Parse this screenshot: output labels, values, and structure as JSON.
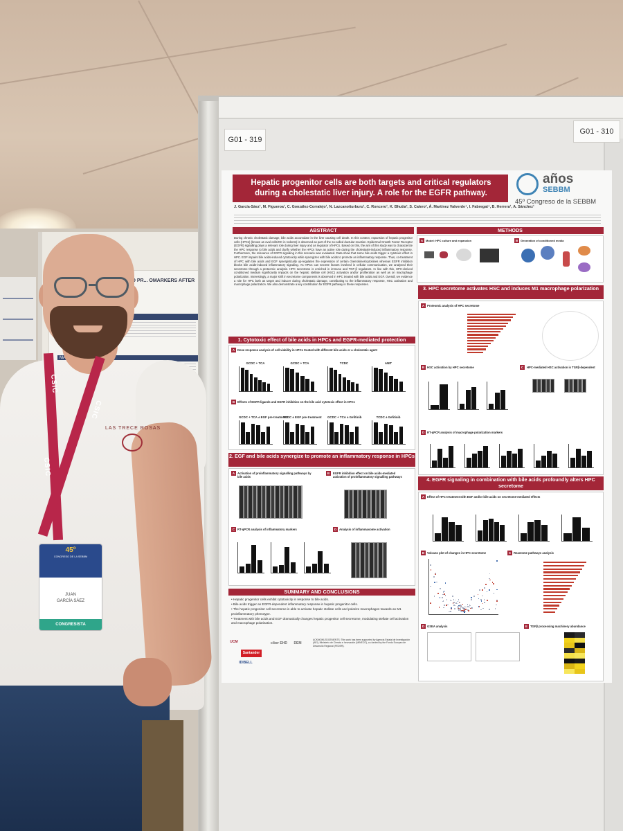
{
  "tags": {
    "left": "G01 - 319",
    "right": "G01 - 310"
  },
  "poster": {
    "title": "Hepatic progenitor cells are both targets and critical regulators during a cholestatic liver injury. A role for the EGFR pathway.",
    "logo_main": "años",
    "logo_sub": "SEBBM",
    "congress": "45º Congreso de la SEBBM",
    "authors": "J. García-Sáez¹, M. Figueroa¹, C. González-Corralejo¹, N. Lazcanoiturburu¹, C. Roncero¹, K. Bhutia³, S. Calero², Á. Martínez Valverde⁴, I. Fabregat⁴, B. Herrera¹, A. Sánchez¹",
    "abstract_h": "ABSTRACT",
    "abstract": "During chronic cholestatic damage, bile acids accumulate in the liver causing cell death. In this context, expansion of hepatic progenitor cells (HPCs) (known as oval cells/OC in rodents) is observed as part of the so-called ductular reaction. Epidermal Growth Factor Receptor (EGFR) signalling plays a relevant role during liver injury and as regulator of HPCs. Based on this, the aim of this study was to characterize the HPC response to bile acids and clarify whether the HPCs have an active role during the cholestasis-induced inflammatory response. Furthermore, the relevance of EGFR signaling in this scenario was evaluated. Data show that some bile acids trigger a cytotoxic effect in HPC. EGF impairs bile acids-induced cytotoxicity while synergizes with bile acids to promote an inflammatory response. Thus, co-treatment of HPC with bile acids and EGF synergistically up-regulates the expression of certain chemokines/cytokines whereas EGFR inhibition blocks bile acids-induced inflammatory signaling. As HPCs can secrete factors involved in cellular communication, we analyzed their secretome through a proteomic analysis. HPC secretome is enriched in immune and TGF-β regulators. In line with this, HPC-derived conditioned medium significantly impacts on the hepatic stellate cell (HSC) activation and/or proliferation as well as on macrophage polarization. Interestingly, a major shift in secretome components is observed in HPC treated with bile acids and EGF. Overall, we evidence a role for HPC both as target and inducer during cholestatic damage, contributing to the inflammatory response, HSC activation and macrophage polarization. We also demonstrate a key contribution for EGFR pathway in these responses.",
    "methods_h": "METHODS",
    "methods_a": "Model: HPC culture and expansion",
    "methods_b": "Generation of conditioned media",
    "sec1": "1. Cytotoxic effect of bile acids in HPCs and EGFR-mediated protection",
    "sec1_a": "Dose response analysis of cell viability in HPCs treated with different bile acids or a cholestatic agent",
    "sec1_b": "Effects of EGFR ligands and EGFR inhibition on the bile acid cytotoxic effect in HPCs",
    "sec1_charts": [
      "GCDC + TCA",
      "GCDC + TCA",
      "TCDC",
      "ANIT"
    ],
    "sec1_charts_b": [
      "GCDC + TCA ± EGF pre-treatment",
      "TCDC ± EGF pre-treatment",
      "GCDC + TCA ± Gefitinib",
      "TCDC ± Gefitinib"
    ],
    "sec2": "2. EGF and bile acids synergize to promote an inflammatory response in HPCs",
    "sec2_a": "Activation of proinflammatory signalling pathways by bile acids",
    "sec2_b": "EGFR inhibition effect on bile acids-mediated activation of proinflammatory signalling pathways",
    "sec2_c": "RT-qPCR analysis of inflammatory markers",
    "sec2_d": "Analysis of inflammasome activation",
    "sec3": "3. HPC secretome activates HSC and induces M1 macrophage polarization",
    "sec3_a": "Proteomic analysis of HPC secretome",
    "sec3_b": "HSC activation by HPC secretome",
    "sec3_c": "HPC-mediated HSC activation is TGFβ-dependent",
    "sec3_d": "RT-qPCR analysis of macrophage polarization markers",
    "sec4": "4. EGFR signaling in combination with bile acids profoundly alters HPC secretome",
    "sec4_a": "Effect of HPC treatment with EGF and/or bile acids on secretome-mediated effects",
    "sec4_b": "Volcano plot of changes in HPC secretome",
    "sec4_c": "Reactome pathways analysis",
    "sec4_d": "GSEA analysis",
    "sec4_e": "TGFβ processing machinery abundance",
    "summary_h": "SUMMARY AND CONCLUSIONS",
    "summary": [
      "Hepatic progenitor cells exhibit cytotoxicity in response to bile acids.",
      "Bile acids trigger an EGFR-dependent inflammatory response in hepatic progenitor cells.",
      "The hepatic progenitor cell secretome is able to activate hepatic stellate cells and polarize macrophages towards an M1 proinflammatory phenotype.",
      "Treatment with bile acids and EGF dramatically changes hepatic progenitor cell secretome, modulating stellate cell activation and macrophage polarization."
    ],
    "ack": "ACKNOWLEDGEMENTS: This work has been supported by Agencia Estatal de Investigación (AEI), Ministerio de Ciencia e Innovación (MINECO), co-funded by the Fondo Europeo de Desarrollo Regional (FEDER).",
    "logos": [
      "UCM",
      "Santander",
      "ciber EHD",
      "DEM",
      "IDIBELL"
    ]
  },
  "background_poster": {
    "title": "...OSOL ON GLYCEMIC AND LIPID PR... OMARKERS AFTER ISCHEMIC S...",
    "section1": "INTRODUCTION",
    "section2": "MATERIALS AND METHODS"
  },
  "person": {
    "shirt_print": "LAS TRECE ROSAS",
    "lanyard": "CSIC",
    "badge_number": "45º",
    "badge_sub": "CONGRESO DE LA SEBBM",
    "badge_name1": "JUAN",
    "badge_name2": "GARCÍA SÁEZ",
    "badge_role": "CONGRESISTA"
  },
  "colors": {
    "poster_red": "#a32638",
    "badge_green": "#2fa58a",
    "lanyard": "#b8264a"
  }
}
